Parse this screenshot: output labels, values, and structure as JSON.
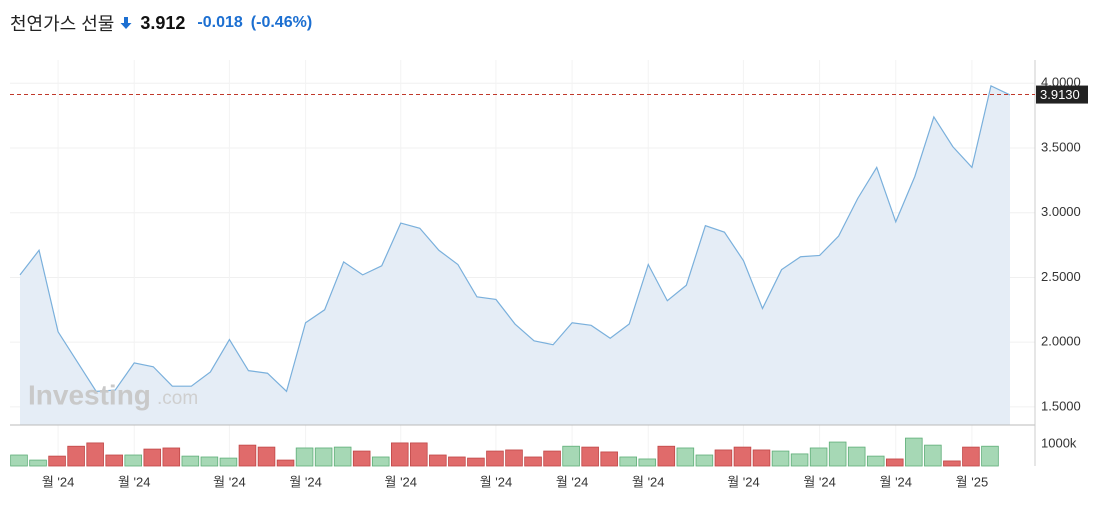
{
  "header": {
    "title": "천연가스 선물",
    "price": "3.912",
    "change": "-0.018",
    "change_pct": "(-0.46%)"
  },
  "watermark": [
    "Investing",
    ".com"
  ],
  "chart_data": {
    "type": "area",
    "categories": [
      null,
      null,
      "월 '24",
      null,
      null,
      null,
      "월 '24",
      null,
      null,
      null,
      null,
      "월 '24",
      null,
      null,
      null,
      "월 '24",
      null,
      null,
      null,
      null,
      "월 '24",
      null,
      null,
      null,
      null,
      "월 '24",
      null,
      null,
      null,
      "월 '24",
      null,
      null,
      null,
      "월 '24",
      null,
      null,
      null,
      null,
      "월 '24",
      null,
      null,
      null,
      "월 '24",
      null,
      null,
      null,
      "월 '24",
      null,
      null,
      null,
      "월 '25",
      null,
      null
    ],
    "series": [
      {
        "name": "price",
        "color": "#7ab0dc",
        "fill": "#e5edf6",
        "values": [
          2.52,
          2.71,
          2.08,
          1.85,
          1.62,
          1.63,
          1.84,
          1.81,
          1.66,
          1.66,
          1.77,
          2.02,
          1.78,
          1.76,
          1.62,
          2.15,
          2.25,
          2.62,
          2.52,
          2.59,
          2.92,
          2.88,
          2.71,
          2.6,
          2.35,
          2.33,
          2.14,
          2.01,
          1.98,
          2.15,
          2.13,
          2.03,
          2.14,
          2.6,
          2.32,
          2.44,
          2.9,
          2.85,
          2.63,
          2.26,
          2.56,
          2.66,
          2.67,
          2.82,
          3.11,
          3.35,
          2.93,
          3.28,
          3.74,
          3.51,
          3.35,
          3.98,
          3.91
        ]
      }
    ],
    "ylim": [
      1.36,
      4.18
    ],
    "yticks": [
      {
        "value": 1.5,
        "label": "1.5000"
      },
      {
        "value": 2,
        "label": "2.0000"
      },
      {
        "value": 2.5,
        "label": "2.5000"
      },
      {
        "value": 3,
        "label": "3.0000"
      },
      {
        "value": 3.5,
        "label": "3.5000"
      },
      {
        "value": 4,
        "label": "4.0000"
      }
    ],
    "price_line": {
      "value": 3.913,
      "label": "3.9130",
      "color": "#c0392b"
    },
    "grid": true,
    "volume": {
      "values": [
        500000,
        270000,
        450000,
        900000,
        1050000,
        500000,
        500000,
        770000,
        820000,
        450000,
        410000,
        360000,
        950000,
        860000,
        270000,
        820000,
        820000,
        860000,
        680000,
        410000,
        1050000,
        1050000,
        500000,
        410000,
        360000,
        680000,
        730000,
        410000,
        680000,
        900000,
        860000,
        640000,
        410000,
        320000,
        900000,
        820000,
        500000,
        730000,
        860000,
        730000,
        680000,
        550000,
        820000,
        1090000,
        860000,
        450000,
        320000,
        1270000,
        950000,
        230000,
        860000,
        900000,
        null
      ],
      "colors": [
        "#a6d8b5",
        "#a6d8b5",
        "#e06b6b",
        "#e06b6b",
        "#e06b6b",
        "#e06b6b",
        "#a6d8b5",
        "#e06b6b",
        "#e06b6b",
        "#a6d8b5",
        "#a6d8b5",
        "#a6d8b5",
        "#e06b6b",
        "#e06b6b",
        "#e06b6b",
        "#a6d8b5",
        "#a6d8b5",
        "#a6d8b5",
        "#e06b6b",
        "#a6d8b5",
        "#e06b6b",
        "#e06b6b",
        "#e06b6b",
        "#e06b6b",
        "#e06b6b",
        "#e06b6b",
        "#e06b6b",
        "#e06b6b",
        "#e06b6b",
        "#a6d8b5",
        "#e06b6b",
        "#e06b6b",
        "#a6d8b5",
        "#a6d8b5",
        "#e06b6b",
        "#a6d8b5",
        "#a6d8b5",
        "#e06b6b",
        "#e06b6b",
        "#e06b6b",
        "#a6d8b5",
        "#a6d8b5",
        "#a6d8b5",
        "#a6d8b5",
        "#a6d8b5",
        "#a6d8b5",
        "#e06b6b",
        "#a6d8b5",
        "#a6d8b5",
        "#e06b6b",
        "#e06b6b",
        "#a6d8b5",
        null
      ],
      "ylim": [
        0,
        1820000
      ],
      "yticks": [
        {
          "value": 1000000,
          "label": "1000k"
        }
      ]
    }
  }
}
